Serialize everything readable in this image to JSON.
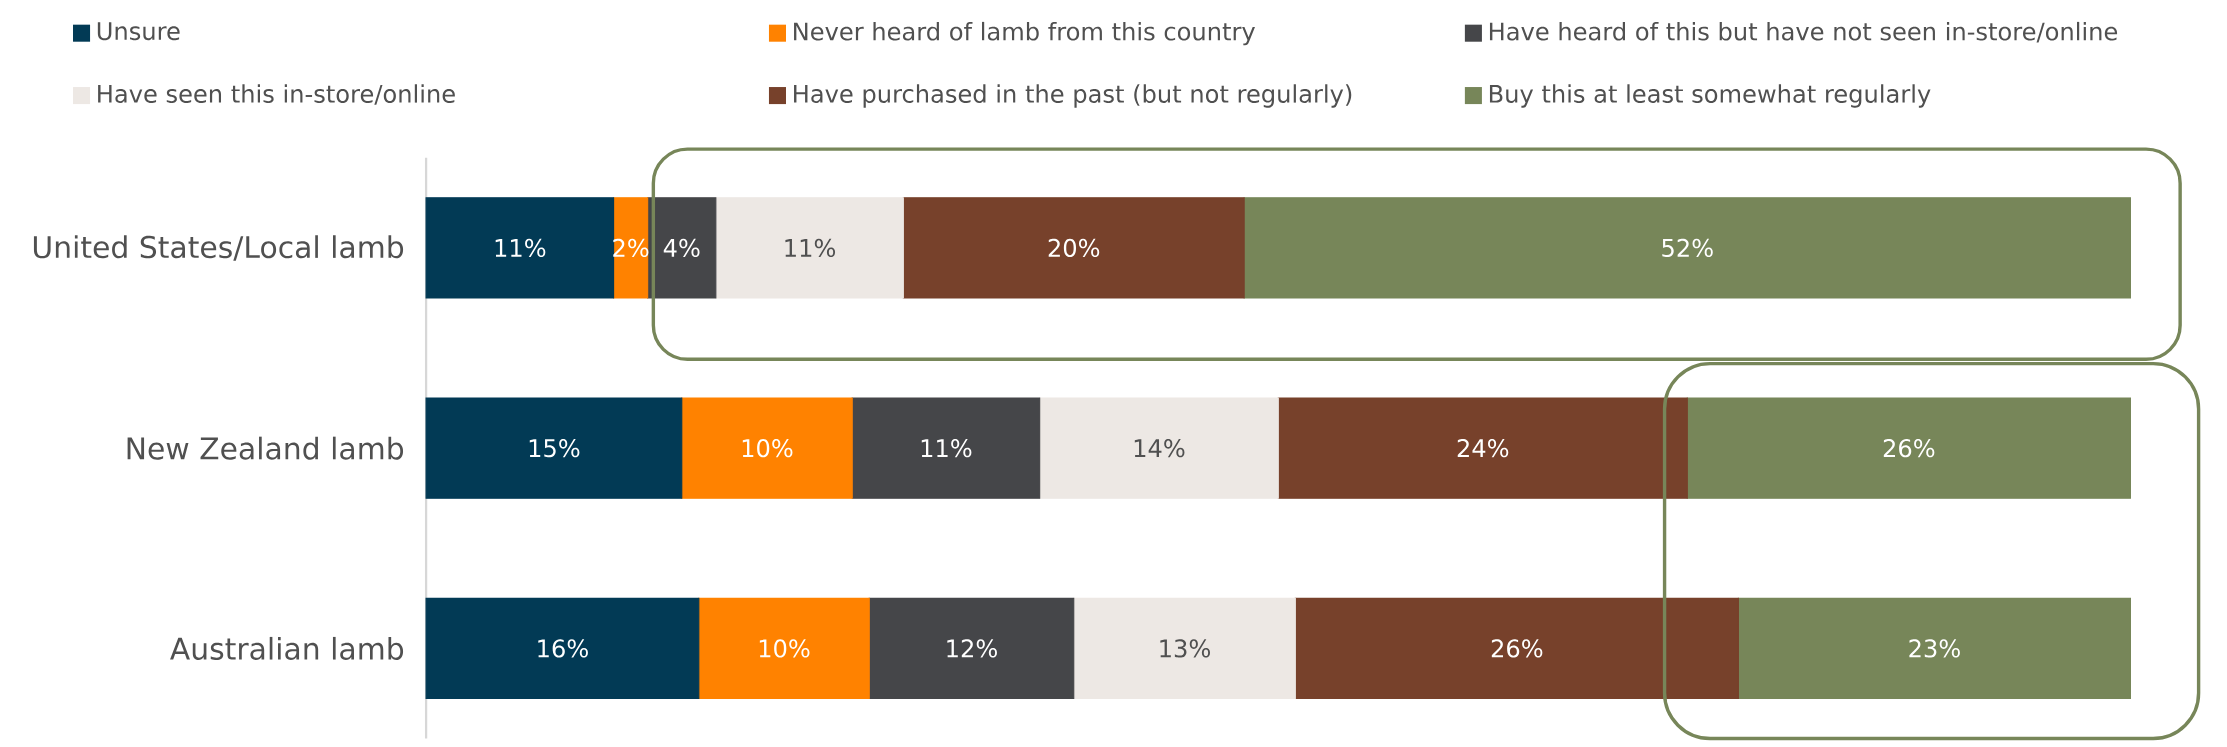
{
  "chart_data": {
    "type": "bar",
    "orientation": "horizontal",
    "stacked": true,
    "legend": "top",
    "categories": [
      "United States/Local lamb",
      "New Zealand lamb",
      "Australian lamb"
    ],
    "series": [
      {
        "name": "Unsure",
        "color": "#023a55",
        "values": [
          11,
          15,
          16
        ],
        "value_labels": [
          "11%",
          "15%",
          "16%"
        ]
      },
      {
        "name": "Never heard of lamb from this country",
        "color": "#ff8200",
        "values": [
          2,
          10,
          10
        ],
        "value_labels": [
          "2%",
          "10%",
          "10%"
        ]
      },
      {
        "name": "Have heard of this but have not seen in-store/online",
        "color": "#454649",
        "values": [
          4,
          11,
          12
        ],
        "value_labels": [
          "4%",
          "11%",
          "12%"
        ]
      },
      {
        "name": "Have seen this in-store/online",
        "color": "#ede8e4",
        "values": [
          11,
          14,
          13
        ],
        "value_labels": [
          "11%",
          "14%",
          "13%"
        ]
      },
      {
        "name": "Have purchased in the past (but not regularly)",
        "color": "#77412b",
        "values": [
          20,
          24,
          26
        ],
        "value_labels": [
          "20%",
          "24%",
          "26%"
        ]
      },
      {
        "name": "Buy this at least somewhat regularly",
        "color": "#778659",
        "values": [
          52,
          26,
          23
        ],
        "value_labels": [
          "52%",
          "26%",
          "23%"
        ]
      }
    ]
  }
}
